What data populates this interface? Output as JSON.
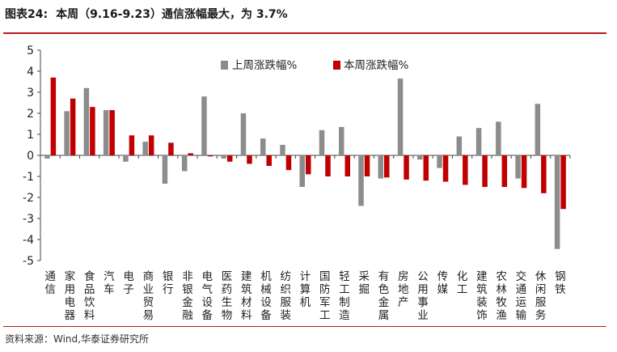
{
  "header": {
    "figure_label": "图表24:",
    "title": "本周（9.16-9.23）通信涨幅最大，为 3.7%"
  },
  "footer": {
    "source": "资料来源：Wind,华泰证券研究所"
  },
  "colors": {
    "last_week": "#8c8c8c",
    "this_week": "#c00000",
    "rule": "#b71c1c"
  },
  "chart_data": {
    "type": "bar",
    "title": "",
    "xlabel": "",
    "ylabel": "",
    "ylim": [
      -5,
      5
    ],
    "yticks": [
      "5",
      "4",
      "3",
      "2",
      "1",
      "0",
      "-1",
      "-2",
      "-3",
      "-4",
      "-5"
    ],
    "legend_position": "top-center",
    "grid": false,
    "categories": [
      "通信",
      "家用电器",
      "食品饮料",
      "汽车",
      "电子",
      "商业贸易",
      "银行",
      "非银金融",
      "电气设备",
      "医药生物",
      "建筑材料",
      "机械设备",
      "纺织服装",
      "计算机",
      "国防军工",
      "轻工制造",
      "采掘",
      "有色金属",
      "房地产",
      "公用事业",
      "传媒",
      "化工",
      "建筑装饰",
      "农林牧渔",
      "交通运输",
      "休闲服务",
      "钢铁"
    ],
    "series": [
      {
        "name": "上周涨跌幅%",
        "values": [
          -0.15,
          2.1,
          3.2,
          2.15,
          -0.3,
          0.65,
          -1.35,
          -0.75,
          2.8,
          -0.15,
          2.0,
          0.8,
          0.5,
          -1.5,
          1.2,
          1.35,
          -2.4,
          -1.1,
          3.65,
          -0.2,
          -0.6,
          0.9,
          1.3,
          1.6,
          -1.1,
          2.45,
          -4.45
        ]
      },
      {
        "name": "本周涨跌幅%",
        "values": [
          3.7,
          2.7,
          2.3,
          2.15,
          0.95,
          0.95,
          0.6,
          0.1,
          -0.05,
          -0.3,
          -0.4,
          -0.5,
          -0.7,
          -0.9,
          -1.0,
          -1.0,
          -1.0,
          -1.05,
          -1.15,
          -1.2,
          -1.25,
          -1.4,
          -1.5,
          -1.5,
          -1.55,
          -1.8,
          -2.55
        ]
      }
    ]
  }
}
